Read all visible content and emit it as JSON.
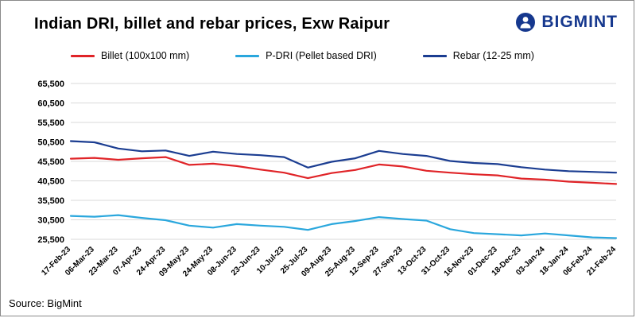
{
  "header": {
    "title": "Indian DRI, billet and rebar prices, Exw Raipur",
    "logo_text": "BIGMINT",
    "brand_color": "#16388e"
  },
  "legend": [
    {
      "label": "Billet (100x100 mm)",
      "color": "#e02428"
    },
    {
      "label": "P-DRI (Pellet based DRI)",
      "color": "#2aa7dd"
    },
    {
      "label": "Rebar (12-25 mm)",
      "color": "#1b3d91"
    }
  ],
  "source": "Source: BigMint",
  "chart_data": {
    "type": "line",
    "title": "Indian DRI, billet and rebar prices, Exw Raipur",
    "xlabel": "",
    "ylabel": "",
    "ylim": [
      25500,
      65500
    ],
    "yticks": [
      25500,
      30500,
      35500,
      40500,
      45500,
      50500,
      55500,
      60500,
      65500
    ],
    "grid": true,
    "legend_position": "top",
    "x": [
      "17-Feb-23",
      "06-Mar-23",
      "23-Mar-23",
      "07-Apr-23",
      "24-Apr-23",
      "09-May-23",
      "24-May-23",
      "08-Jun-23",
      "23-Jun-23",
      "10-Jul-23",
      "25-Jul-23",
      "09-Aug-23",
      "25-Aug-23",
      "12-Sep-23",
      "27-Sep-23",
      "13-Oct-23",
      "31-Oct-23",
      "16-Nov-23",
      "01-Dec-23",
      "18-Dec-23",
      "03-Jan-24",
      "18-Jan-24",
      "06-Feb-24",
      "21-Feb-24"
    ],
    "series": [
      {
        "name": "Billet (100x100 mm)",
        "color": "#e02428",
        "values": [
          46200,
          46400,
          45900,
          46300,
          46600,
          44600,
          44900,
          44300,
          43400,
          42600,
          41200,
          42500,
          43300,
          44700,
          44200,
          43100,
          42600,
          42200,
          41900,
          41100,
          40800,
          40300,
          40000,
          39700
        ]
      },
      {
        "name": "P-DRI (Pellet based DRI)",
        "color": "#2aa7dd",
        "values": [
          31500,
          31300,
          31700,
          31000,
          30400,
          29000,
          28500,
          29400,
          29000,
          28700,
          27900,
          29400,
          30200,
          31200,
          30700,
          30300,
          28100,
          27100,
          26800,
          26500,
          27000,
          26500,
          26000,
          25800
        ]
      },
      {
        "name": "Rebar (12-25 mm)",
        "color": "#1b3d91",
        "values": [
          50700,
          50400,
          48800,
          48100,
          48300,
          46900,
          48000,
          47400,
          47100,
          46600,
          43900,
          45400,
          46300,
          48200,
          47400,
          46900,
          45600,
          45100,
          44800,
          44000,
          43400,
          43000,
          42800,
          42600
        ]
      }
    ]
  }
}
